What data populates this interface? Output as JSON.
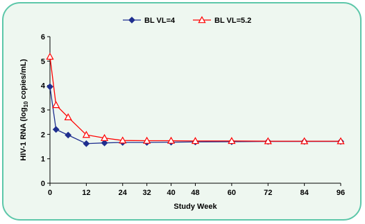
{
  "chart_data": {
    "type": "line",
    "title": "",
    "xlabel": "Study Week",
    "ylabel_main": "HIV-1 RNA (log",
    "ylabel_sub": "10",
    "ylabel_tail": " copies/mL)",
    "xlim": [
      0,
      96
    ],
    "ylim": [
      0,
      6
    ],
    "x_ticks": [
      0,
      12,
      24,
      32,
      40,
      48,
      60,
      72,
      84,
      96
    ],
    "y_ticks": [
      0,
      1,
      2,
      3,
      4,
      5,
      6
    ],
    "grid": false,
    "legend_position": "top",
    "series": [
      {
        "name": "BL VL=4",
        "color": "#1f2f8f",
        "marker": "diamond-filled",
        "x": [
          0,
          2,
          6,
          12,
          18,
          24,
          32,
          40,
          48,
          60,
          72,
          84,
          96
        ],
        "y": [
          3.95,
          2.2,
          1.97,
          1.62,
          1.65,
          1.67,
          1.67,
          1.68,
          1.69,
          1.7,
          1.71,
          1.71,
          1.71
        ]
      },
      {
        "name": "BL VL=5.2",
        "color": "#ff0000",
        "marker": "triangle-open",
        "x": [
          0,
          2,
          6,
          12,
          18,
          24,
          32,
          40,
          48,
          60,
          72,
          84,
          96
        ],
        "y": [
          5.18,
          3.2,
          2.7,
          1.98,
          1.85,
          1.75,
          1.74,
          1.74,
          1.73,
          1.73,
          1.72,
          1.72,
          1.72
        ]
      }
    ]
  }
}
